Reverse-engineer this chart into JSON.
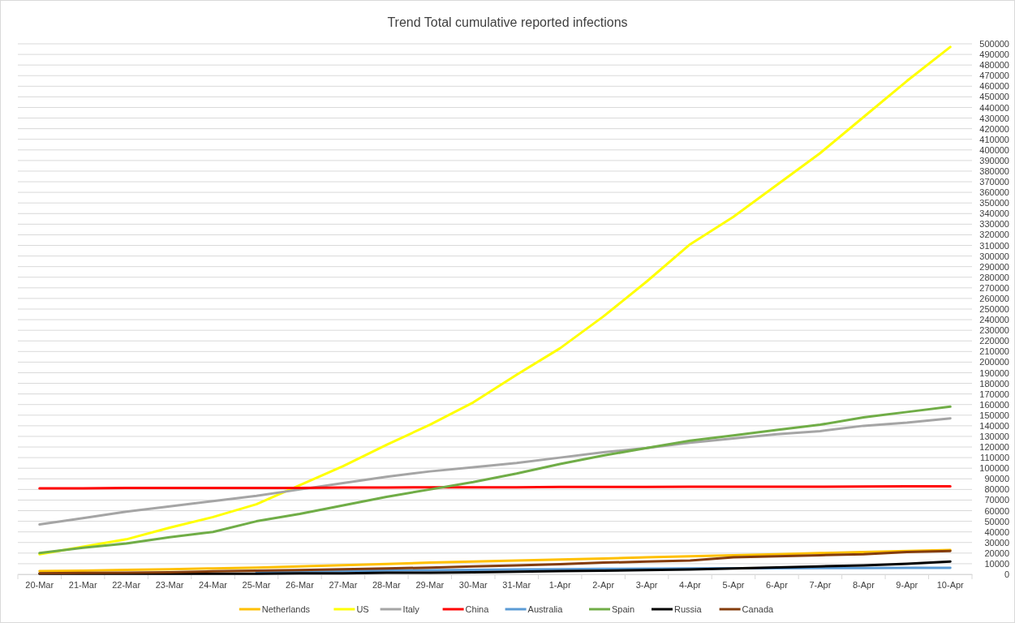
{
  "chart_data": {
    "type": "line",
    "title": "Trend Total cumulative reported infections",
    "categories": [
      "20-Mar",
      "21-Mar",
      "22-Mar",
      "23-Mar",
      "24-Mar",
      "25-Mar",
      "26-Mar",
      "27-Mar",
      "28-Mar",
      "29-Mar",
      "30-Mar",
      "31-Mar",
      "1-Apr",
      "2-Apr",
      "3-Apr",
      "4-Apr",
      "5-Apr",
      "6-Apr",
      "7-Apr",
      "8-Apr",
      "9-Apr",
      "10-Apr"
    ],
    "series": [
      {
        "name": "Netherlands",
        "color": "#ffc000",
        "values": [
          3000,
          3500,
          4200,
          4800,
          5600,
          6400,
          7400,
          8600,
          9800,
          11000,
          12000,
          13000,
          14000,
          15000,
          16000,
          17000,
          18000,
          19000,
          20000,
          21000,
          22000,
          23000
        ]
      },
      {
        "name": "US",
        "color": "#ffff00",
        "values": [
          19000,
          26000,
          33000,
          44000,
          54000,
          66000,
          84000,
          102000,
          122000,
          141000,
          162000,
          188000,
          213000,
          243000,
          276000,
          311000,
          337000,
          367000,
          397000,
          431000,
          465000,
          497000
        ]
      },
      {
        "name": "Italy",
        "color": "#a5a5a5",
        "values": [
          47000,
          53000,
          59000,
          64000,
          69000,
          74000,
          80000,
          86000,
          92000,
          97000,
          101000,
          105000,
          110000,
          115000,
          119000,
          124000,
          128000,
          132000,
          135000,
          140000,
          143000,
          147000
        ]
      },
      {
        "name": "China",
        "color": "#ff0000",
        "values": [
          81000,
          81000,
          81500,
          81500,
          81500,
          81500,
          81500,
          81800,
          81800,
          82000,
          82000,
          82000,
          82300,
          82300,
          82400,
          82500,
          82500,
          82600,
          82600,
          82700,
          83000,
          83000
        ]
      },
      {
        "name": "Australia",
        "color": "#5b9bd5",
        "values": [
          null,
          null,
          null,
          null,
          null,
          2400,
          2800,
          3100,
          3600,
          3900,
          4200,
          4500,
          4800,
          5100,
          5300,
          5500,
          5700,
          5800,
          5900,
          6000,
          6100,
          6200
        ]
      },
      {
        "name": "Spain",
        "color": "#70ad47",
        "values": [
          20000,
          25000,
          29000,
          35000,
          40000,
          50000,
          57000,
          65000,
          73000,
          80000,
          87000,
          95000,
          104000,
          112000,
          119000,
          126000,
          131000,
          136000,
          141000,
          148000,
          153000,
          158000
        ]
      },
      {
        "name": "Russia",
        "color": "#000000",
        "values": [
          500,
          500,
          500,
          500,
          500,
          500,
          1000,
          1000,
          1500,
          1500,
          2000,
          2500,
          3000,
          3500,
          4000,
          4500,
          5500,
          6500,
          7500,
          8500,
          10000,
          12000
        ]
      },
      {
        "name": "Canada",
        "color": "#843c0c",
        "values": [
          1000,
          1300,
          1500,
          2000,
          2800,
          3400,
          4000,
          4700,
          5600,
          6300,
          7400,
          8500,
          9500,
          11000,
          12000,
          13000,
          16000,
          17000,
          18000,
          19000,
          21000,
          22000
        ]
      }
    ],
    "ylim": [
      0,
      500000
    ],
    "yticks": [
      0,
      10000,
      20000,
      30000,
      40000,
      50000,
      60000,
      70000,
      80000,
      90000,
      100000,
      110000,
      120000,
      130000,
      140000,
      150000,
      160000,
      170000,
      180000,
      190000,
      200000,
      210000,
      220000,
      230000,
      240000,
      250000,
      260000,
      270000,
      280000,
      290000,
      300000,
      310000,
      320000,
      330000,
      340000,
      350000,
      360000,
      370000,
      380000,
      390000,
      400000,
      410000,
      420000,
      430000,
      440000,
      450000,
      460000,
      470000,
      480000,
      490000,
      500000
    ],
    "grid": "y",
    "legend": "bottom",
    "marker": "none",
    "line_style": "solid"
  }
}
